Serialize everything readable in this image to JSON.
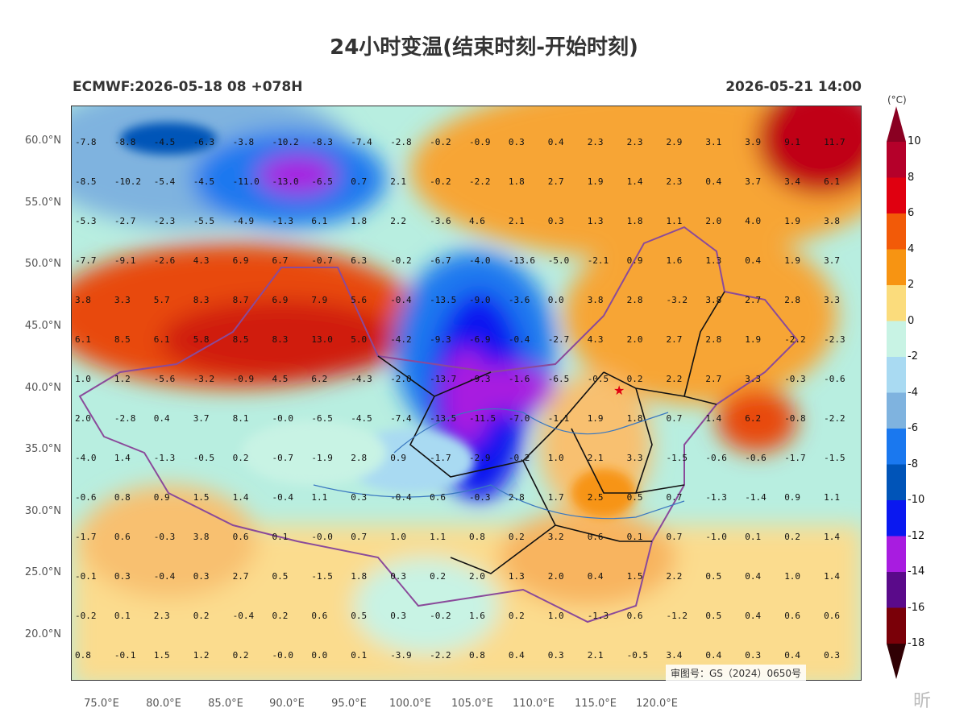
{
  "title": "24小时变温(结束时刻-开始时刻)",
  "model_run": "ECMWF:2026-05-18 08 +078H",
  "valid_time": "2026-05-21 14:00",
  "approval": "审图号：GS（2024）0650号",
  "watermark": "昕",
  "lat_labels": [
    "60.0°N",
    "55.0°N",
    "50.0°N",
    "45.0°N",
    "40.0°N",
    "35.0°N",
    "30.0°N",
    "25.0°N",
    "20.0°N"
  ],
  "lon_labels": [
    "75.0°E",
    "80.0°E",
    "85.0°E",
    "90.0°E",
    "95.0°E",
    "100.0°E",
    "105.0°E",
    "110.0°E",
    "115.0°E",
    "120.0°E"
  ],
  "colorbar": {
    "unit": "(°C)",
    "labels": [
      "10",
      "8",
      "6",
      "4",
      "2",
      "0",
      "-2",
      "-4",
      "-6",
      "-8",
      "-10",
      "-12",
      "-14",
      "-16",
      "-18"
    ],
    "colors": [
      "#b5002a",
      "#e00010",
      "#f25a08",
      "#f79412",
      "#fbdc7c",
      "#c8f3e4",
      "#a9daf2",
      "#7fb3df",
      "#1a78ef",
      "#0054b8",
      "#0a18f0",
      "#a81ce0",
      "#5a0a8a",
      "#7a0008"
    ],
    "top_color": "#8a0022",
    "bottom_color": "#300004"
  },
  "grid_values": [
    [
      "-7.8",
      "-8.8",
      "-4.5",
      "-6.3",
      "-3.8",
      "-10.2",
      "-8.3",
      "-7.4",
      "-2.8",
      "-0.2",
      "-0.9",
      "0.3",
      "0.4",
      "2.3",
      "2.3",
      "2.9",
      "3.1",
      "3.9",
      "9.1",
      "11.7"
    ],
    [
      "-8.5",
      "-10.2",
      "-5.4",
      "-4.5",
      "-11.0",
      "-13.0",
      "-6.5",
      "0.7",
      "2.1",
      "-0.2",
      "-2.2",
      "1.8",
      "2.7",
      "1.9",
      "1.4",
      "2.3",
      "0.4",
      "3.7",
      "3.4",
      "6.1"
    ],
    [
      "-5.3",
      "-2.7",
      "-2.3",
      "-5.5",
      "-4.9",
      "-1.3",
      "6.1",
      "1.8",
      "2.2",
      "-3.6",
      "4.6",
      "2.1",
      "0.3",
      "1.3",
      "1.8",
      "1.1",
      "2.0",
      "4.0",
      "1.9",
      "3.8"
    ],
    [
      "-7.7",
      "-9.1",
      "-2.6",
      "4.3",
      "6.9",
      "6.7",
      "-0.7",
      "6.3",
      "-0.2",
      "-6.7",
      "-4.0",
      "-13.6",
      "-5.0",
      "-2.1",
      "0.9",
      "1.6",
      "1.3",
      "0.4",
      "1.9",
      "3.7"
    ],
    [
      "3.8",
      "3.3",
      "5.7",
      "8.3",
      "8.7",
      "6.9",
      "7.9",
      "5.6",
      "-0.4",
      "-13.5",
      "-9.0",
      "-3.6",
      "0.0",
      "3.8",
      "2.8",
      "-3.2",
      "3.8",
      "2.7",
      "2.8",
      "3.3"
    ],
    [
      "6.1",
      "8.5",
      "6.1",
      "5.8",
      "8.5",
      "8.3",
      "13.0",
      "5.0",
      "-4.2",
      "-9.3",
      "-6.9",
      "-0.4",
      "-2.7",
      "4.3",
      "2.0",
      "2.7",
      "2.8",
      "1.9",
      "-2.2",
      "-2.3"
    ],
    [
      "1.0",
      "1.2",
      "-5.6",
      "-3.2",
      "-0.9",
      "4.5",
      "6.2",
      "-4.3",
      "-2.0",
      "-13.7",
      "-9.3",
      "-1.6",
      "-6.5",
      "-0.5",
      "0.2",
      "2.2",
      "2.7",
      "3.3",
      "-0.3",
      "-0.6"
    ],
    [
      "2.0",
      "-2.8",
      "0.4",
      "3.7",
      "8.1",
      "-0.0",
      "-6.5",
      "-4.5",
      "-7.4",
      "-13.5",
      "-11.5",
      "-7.0",
      "-1.1",
      "1.9",
      "1.8",
      "0.7",
      "1.4",
      "6.2",
      "-0.8",
      "-2.2"
    ],
    [
      "-4.0",
      "1.4",
      "-1.3",
      "-0.5",
      "0.2",
      "-0.7",
      "-1.9",
      "2.8",
      "0.9",
      "-1.7",
      "-2.9",
      "-0.2",
      "1.0",
      "2.1",
      "3.3",
      "-1.5",
      "-0.6",
      "-0.6",
      "-1.7",
      "-1.5"
    ],
    [
      "-0.6",
      "0.8",
      "0.9",
      "1.5",
      "1.4",
      "-0.4",
      "1.1",
      "0.3",
      "-0.4",
      "0.6",
      "-0.3",
      "2.8",
      "1.7",
      "2.5",
      "0.5",
      "0.7",
      "-1.3",
      "-1.4",
      "0.9",
      "1.1"
    ],
    [
      "-1.7",
      "0.6",
      "-0.3",
      "3.8",
      "0.6",
      "0.1",
      "-0.0",
      "0.7",
      "1.0",
      "1.1",
      "0.8",
      "0.2",
      "3.2",
      "0.6",
      "0.1",
      "0.7",
      "-1.0",
      "0.1",
      "0.2",
      "1.4"
    ],
    [
      "-0.1",
      "0.3",
      "-0.4",
      "0.3",
      "2.7",
      "0.5",
      "-1.5",
      "1.8",
      "0.3",
      "0.2",
      "2.0",
      "1.3",
      "2.0",
      "0.4",
      "1.5",
      "2.2",
      "0.5",
      "0.4",
      "1.0",
      "1.4"
    ],
    [
      "-0.2",
      "0.1",
      "2.3",
      "0.2",
      "-0.4",
      "0.2",
      "0.6",
      "0.5",
      "0.3",
      "-0.2",
      "1.6",
      "0.2",
      "1.0",
      "-1.3",
      "0.6",
      "-1.2",
      "0.5",
      "0.4",
      "0.6",
      "0.6"
    ],
    [
      "0.8",
      "-0.1",
      "1.5",
      "1.2",
      "0.2",
      "-0.0",
      "0.0",
      "0.1",
      "-3.9",
      "-2.2",
      "0.8",
      "0.4",
      "0.3",
      "2.1",
      "-0.5",
      "3.4",
      "0.4",
      "0.3",
      "0.4",
      "0.3"
    ]
  ],
  "marker": "star"
}
